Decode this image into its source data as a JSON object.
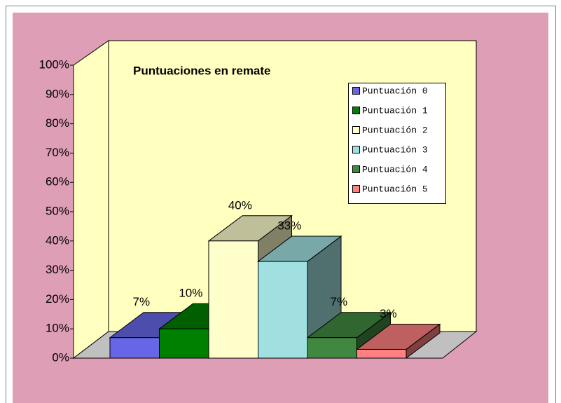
{
  "chart_data": {
    "type": "bar",
    "title": "Puntuaciones en remate",
    "series": [
      {
        "name": "Puntuación 0",
        "color": "#6666e6",
        "values": [
          7
        ],
        "value_labels": [
          "7%"
        ]
      },
      {
        "name": "Puntuación 1",
        "color": "#008000",
        "values": [
          10
        ],
        "value_labels": [
          "10%"
        ]
      },
      {
        "name": "Puntuación 2",
        "color": "#ffffcc",
        "values": [
          40
        ],
        "value_labels": [
          "40%"
        ]
      },
      {
        "name": "Puntuación 3",
        "color": "#a0e0e0",
        "values": [
          33
        ],
        "value_labels": [
          "33%"
        ]
      },
      {
        "name": "Puntuación 4",
        "color": "#408840",
        "values": [
          7
        ],
        "value_labels": [
          "7%"
        ]
      },
      {
        "name": "Puntuación 5",
        "color": "#ff8080",
        "values": [
          3
        ],
        "value_labels": [
          "3%"
        ]
      }
    ],
    "ylim": [
      0,
      100
    ],
    "yticks": [
      {
        "value": 0,
        "label": "0%"
      },
      {
        "value": 10,
        "label": "10%"
      },
      {
        "value": 20,
        "label": "20%"
      },
      {
        "value": 30,
        "label": "30%"
      },
      {
        "value": 40,
        "label": "40%"
      },
      {
        "value": 50,
        "label": "50%"
      },
      {
        "value": 60,
        "label": "60%"
      },
      {
        "value": 70,
        "label": "70%"
      },
      {
        "value": 80,
        "label": "80%"
      },
      {
        "value": 90,
        "label": "90%"
      },
      {
        "value": 100,
        "label": "100%"
      }
    ],
    "legend": "right"
  }
}
